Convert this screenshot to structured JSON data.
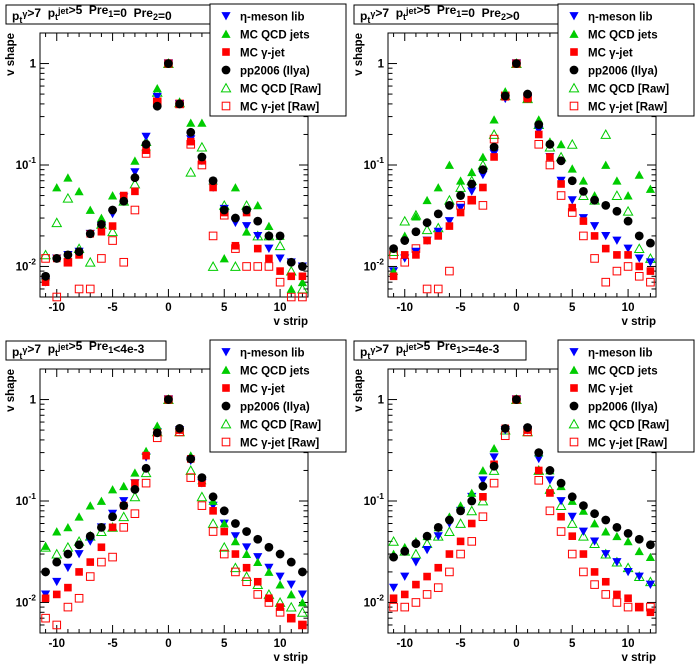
{
  "legend": [
    {
      "marker": "tri-down",
      "color": "#0000ff",
      "label": "η-meson lib"
    },
    {
      "marker": "tri-up",
      "color": "#00cc00",
      "label": "MC QCD jets"
    },
    {
      "marker": "square",
      "color": "#ff0000",
      "label": "MC γ-jet"
    },
    {
      "marker": "circle",
      "color": "#000000",
      "label": "pp2006 (Ilya)"
    },
    {
      "marker": "tri-up-open",
      "color": "#00cc00",
      "label": "MC QCD [Raw]"
    },
    {
      "marker": "square-open",
      "color": "#ff0000",
      "label": "MC γ-jet [Raw]"
    }
  ],
  "chart_data": [
    {
      "type": "scatter",
      "title": "p_t^γ>7  p_t^jet>5  Pre_1=0  Pre_2=0",
      "xlabel": "v strip",
      "ylabel": "v shape",
      "xlim": [
        -11.5,
        12.5
      ],
      "ylim": [
        0.005,
        2.0
      ],
      "ylog": true,
      "xticks": [
        "-10",
        "-5",
        "0",
        "5",
        "10"
      ],
      "yticks": [
        "10^-2",
        "10^-1",
        "1"
      ],
      "legend_position": "top-right",
      "x": [
        -11,
        -10,
        -9,
        -8,
        -7,
        -6,
        -5,
        -4,
        -3,
        -2,
        -1,
        0,
        1,
        2,
        3,
        4,
        5,
        6,
        7,
        8,
        9,
        10,
        11,
        12
      ],
      "series": [
        {
          "name": "η-meson lib",
          "values": [
            0.007,
            0.012,
            0.013,
            0.014,
            0.021,
            0.025,
            0.033,
            0.048,
            0.085,
            0.19,
            0.47,
            1.0,
            0.4,
            0.18,
            0.11,
            0.06,
            0.037,
            0.027,
            0.025,
            0.02,
            0.015,
            0.012,
            0.011,
            0.01
          ]
        },
        {
          "name": "MC QCD jets",
          "values": [
            0.008,
            0.06,
            0.075,
            0.055,
            0.036,
            0.03,
            0.05,
            0.045,
            0.11,
            0.15,
            0.57,
            1.0,
            0.42,
            0.26,
            0.26,
            0.07,
            0.012,
            0.06,
            0.022,
            0.04,
            0.025,
            0.02,
            0.006,
            0.007
          ]
        },
        {
          "name": "MC γ-jet",
          "values": [
            0.007,
            0.012,
            0.011,
            0.013,
            0.021,
            0.022,
            0.025,
            0.05,
            0.055,
            0.14,
            0.42,
            1.0,
            0.4,
            0.17,
            0.11,
            0.06,
            0.034,
            0.016,
            0.034,
            0.015,
            0.012,
            0.009,
            0.008,
            0.008
          ]
        },
        {
          "name": "pp2006 (Ilya)",
          "values": [
            0.008,
            0.012,
            0.013,
            0.014,
            0.021,
            0.026,
            0.036,
            0.044,
            0.075,
            0.16,
            0.38,
            1.0,
            0.4,
            0.21,
            0.12,
            0.07,
            0.036,
            0.03,
            0.036,
            0.028,
            0.02,
            0.02,
            0.011,
            0.01
          ]
        },
        {
          "name": "MC QCD [Raw]",
          "values": [
            0.013,
            0.027,
            0.047,
            0.015,
            0.011,
            0.026,
            0.022,
            0.044,
            0.065,
            0.17,
            0.52,
            1.0,
            0.41,
            0.085,
            0.15,
            0.01,
            0.04,
            0.01,
            0.04,
            0.02,
            0.02,
            0.016,
            0.009,
            0.006
          ]
        },
        {
          "name": "MC γ-jet [Raw]",
          "values": [
            0.012,
            0.005,
            0.011,
            0.006,
            0.006,
            0.012,
            0.018,
            0.011,
            0.036,
            0.13,
            0.42,
            1.0,
            0.4,
            0.16,
            0.1,
            0.02,
            0.032,
            0.015,
            0.01,
            0.01,
            0.01,
            0.007,
            0.005,
            0.005
          ]
        }
      ]
    },
    {
      "type": "scatter",
      "title": "p_t^γ>7  p_t^jet>5  Pre_1=0  Pre_2>0",
      "xlabel": "v strip",
      "ylabel": "v shape",
      "xlim": [
        -11.5,
        12.5
      ],
      "ylim": [
        0.005,
        2.0
      ],
      "ylog": true,
      "xticks": [
        "-10",
        "-5",
        "0",
        "5",
        "10"
      ],
      "yticks": [
        "10^-2",
        "10^-1",
        "1"
      ],
      "legend_position": "top-right",
      "x": [
        -11,
        -10,
        -9,
        -8,
        -7,
        -6,
        -5,
        -4,
        -3,
        -2,
        -1,
        0,
        1,
        2,
        3,
        4,
        5,
        6,
        7,
        8,
        9,
        10,
        11,
        12
      ],
      "series": [
        {
          "name": "η-meson lib",
          "values": [
            0.009,
            0.012,
            0.014,
            0.018,
            0.022,
            0.028,
            0.038,
            0.055,
            0.08,
            0.13,
            0.45,
            1.0,
            0.45,
            0.22,
            0.12,
            0.07,
            0.045,
            0.03,
            0.025,
            0.02,
            0.018,
            0.015,
            0.012,
            0.011
          ]
        },
        {
          "name": "MC QCD jets",
          "values": [
            0.009,
            0.02,
            0.031,
            0.045,
            0.06,
            0.1,
            0.07,
            0.085,
            0.12,
            0.28,
            0.53,
            1.0,
            0.46,
            0.28,
            0.17,
            0.16,
            0.092,
            0.07,
            0.05,
            0.1,
            0.07,
            0.05,
            0.08,
            0.058
          ]
        },
        {
          "name": "MC γ-jet",
          "values": [
            0.008,
            0.013,
            0.013,
            0.018,
            0.02,
            0.025,
            0.034,
            0.045,
            0.06,
            0.12,
            0.47,
            1.0,
            0.45,
            0.2,
            0.12,
            0.065,
            0.038,
            0.028,
            0.02,
            0.015,
            0.013,
            0.013,
            0.01,
            0.009
          ]
        },
        {
          "name": "pp2006 (Ilya)",
          "values": [
            0.015,
            0.018,
            0.022,
            0.027,
            0.033,
            0.04,
            0.05,
            0.065,
            0.09,
            0.15,
            0.48,
            1.0,
            0.5,
            0.25,
            0.16,
            0.11,
            0.07,
            0.055,
            0.045,
            0.04,
            0.035,
            0.028,
            0.02,
            0.017
          ]
        },
        {
          "name": "MC QCD [Raw]",
          "values": [
            0.014,
            0.028,
            0.032,
            0.023,
            0.024,
            0.045,
            0.06,
            0.07,
            0.1,
            0.2,
            0.48,
            1.0,
            0.45,
            0.25,
            0.15,
            0.12,
            0.16,
            0.05,
            0.045,
            0.2,
            0.05,
            0.035,
            0.015,
            0.012
          ]
        },
        {
          "name": "MC γ-jet [Raw]",
          "values": [
            0.013,
            0.011,
            0.015,
            0.006,
            0.006,
            0.009,
            0.04,
            0.045,
            0.04,
            0.18,
            0.48,
            1.0,
            0.47,
            0.16,
            0.1,
            0.05,
            0.034,
            0.02,
            0.012,
            0.007,
            0.009,
            0.01,
            0.008,
            0.007
          ]
        }
      ]
    },
    {
      "type": "scatter",
      "title": "p_t^γ>7  p_t^jet>5  Pre_1<4e-3",
      "xlabel": "v strip",
      "ylabel": "v shape",
      "xlim": [
        -11.5,
        12.5
      ],
      "ylim": [
        0.005,
        2.0
      ],
      "ylog": true,
      "xticks": [
        "-10",
        "-5",
        "0",
        "5",
        "10"
      ],
      "yticks": [
        "10^-2",
        "10^-1",
        "1"
      ],
      "legend_position": "top-right",
      "x": [
        -11,
        -10,
        -9,
        -8,
        -7,
        -6,
        -5,
        -4,
        -3,
        -2,
        -1,
        0,
        1,
        2,
        3,
        4,
        5,
        6,
        7,
        8,
        9,
        10,
        11,
        12
      ],
      "series": [
        {
          "name": "η-meson lib",
          "values": [
            0.012,
            0.016,
            0.022,
            0.03,
            0.04,
            0.055,
            0.075,
            0.1,
            0.15,
            0.27,
            0.48,
            1.0,
            0.5,
            0.25,
            0.15,
            0.09,
            0.06,
            0.045,
            0.035,
            0.028,
            0.022,
            0.018,
            0.015,
            0.012
          ]
        },
        {
          "name": "MC QCD jets",
          "values": [
            0.036,
            0.05,
            0.055,
            0.07,
            0.09,
            0.1,
            0.13,
            0.14,
            0.19,
            0.31,
            0.55,
            1.0,
            0.52,
            0.28,
            0.16,
            0.1,
            0.06,
            0.04,
            0.03,
            0.025,
            0.02,
            0.015,
            0.012,
            0.01
          ]
        },
        {
          "name": "MC γ-jet",
          "values": [
            0.011,
            0.012,
            0.014,
            0.02,
            0.025,
            0.035,
            0.055,
            0.09,
            0.15,
            0.28,
            0.47,
            1.0,
            0.5,
            0.26,
            0.15,
            0.08,
            0.05,
            0.03,
            0.022,
            0.016,
            0.011,
            0.009,
            0.007,
            0.006
          ]
        },
        {
          "name": "pp2006 (Ilya)",
          "values": [
            0.02,
            0.025,
            0.03,
            0.037,
            0.045,
            0.055,
            0.07,
            0.09,
            0.13,
            0.21,
            0.47,
            1.0,
            0.52,
            0.26,
            0.17,
            0.11,
            0.08,
            0.06,
            0.05,
            0.042,
            0.035,
            0.03,
            0.025,
            0.02
          ]
        },
        {
          "name": "MC QCD [Raw]",
          "values": [
            0.035,
            0.03,
            0.035,
            0.04,
            0.045,
            0.05,
            0.055,
            0.07,
            0.11,
            0.19,
            0.48,
            1.0,
            0.48,
            0.2,
            0.11,
            0.06,
            0.035,
            0.022,
            0.018,
            0.015,
            0.012,
            0.01,
            0.009,
            0.008
          ]
        },
        {
          "name": "MC γ-jet [Raw]",
          "values": [
            0.007,
            0.006,
            0.009,
            0.011,
            0.018,
            0.025,
            0.028,
            0.055,
            0.075,
            0.15,
            0.42,
            1.0,
            0.48,
            0.17,
            0.09,
            0.05,
            0.03,
            0.02,
            0.016,
            0.012,
            0.01,
            0.008,
            0.007,
            0.006
          ]
        }
      ]
    },
    {
      "type": "scatter",
      "title": "p_t^γ>7  p_t^jet>5  Pre_1>=4e-3",
      "xlabel": "v strip",
      "ylabel": "v shape",
      "xlim": [
        -11.5,
        12.5
      ],
      "ylim": [
        0.005,
        2.0
      ],
      "ylog": true,
      "xticks": [
        "-10",
        "-5",
        "0",
        "5",
        "10"
      ],
      "yticks": [
        "10^-2",
        "10^-1",
        "1"
      ],
      "legend_position": "top-right",
      "x": [
        -11,
        -10,
        -9,
        -8,
        -7,
        -6,
        -5,
        -4,
        -3,
        -2,
        -1,
        0,
        1,
        2,
        3,
        4,
        5,
        6,
        7,
        8,
        9,
        10,
        11,
        12
      ],
      "series": [
        {
          "name": "η-meson lib",
          "values": [
            0.014,
            0.018,
            0.025,
            0.033,
            0.045,
            0.06,
            0.08,
            0.11,
            0.16,
            0.27,
            0.5,
            1.0,
            0.5,
            0.26,
            0.16,
            0.1,
            0.07,
            0.05,
            0.04,
            0.03,
            0.025,
            0.02,
            0.018,
            0.015
          ]
        },
        {
          "name": "MC QCD jets",
          "values": [
            0.03,
            0.035,
            0.04,
            0.045,
            0.055,
            0.07,
            0.09,
            0.12,
            0.2,
            0.33,
            0.52,
            1.0,
            0.52,
            0.3,
            0.2,
            0.14,
            0.1,
            0.08,
            0.06,
            0.05,
            0.045,
            0.04,
            0.032,
            0.028
          ]
        },
        {
          "name": "MC γ-jet",
          "values": [
            0.011,
            0.012,
            0.015,
            0.018,
            0.022,
            0.03,
            0.04,
            0.06,
            0.11,
            0.23,
            0.52,
            1.0,
            0.5,
            0.2,
            0.12,
            0.07,
            0.045,
            0.03,
            0.02,
            0.016,
            0.012,
            0.011,
            0.009,
            0.008
          ]
        },
        {
          "name": "pp2006 (Ilya)",
          "values": [
            0.028,
            0.032,
            0.038,
            0.045,
            0.055,
            0.065,
            0.08,
            0.1,
            0.14,
            0.22,
            0.52,
            1.0,
            0.53,
            0.3,
            0.2,
            0.15,
            0.11,
            0.09,
            0.075,
            0.065,
            0.055,
            0.048,
            0.042,
            0.037
          ]
        },
        {
          "name": "MC QCD [Raw]",
          "values": [
            0.04,
            0.032,
            0.03,
            0.038,
            0.045,
            0.05,
            0.06,
            0.08,
            0.1,
            0.2,
            0.5,
            1.0,
            0.48,
            0.2,
            0.13,
            0.09,
            0.06,
            0.045,
            0.038,
            0.03,
            0.025,
            0.022,
            0.018,
            0.016
          ]
        },
        {
          "name": "MC γ-jet [Raw]",
          "values": [
            0.009,
            0.009,
            0.01,
            0.012,
            0.014,
            0.02,
            0.03,
            0.04,
            0.07,
            0.15,
            0.44,
            1.0,
            0.48,
            0.16,
            0.08,
            0.05,
            0.03,
            0.02,
            0.015,
            0.012,
            0.01,
            0.009,
            0.009,
            0.009
          ]
        }
      ]
    }
  ]
}
